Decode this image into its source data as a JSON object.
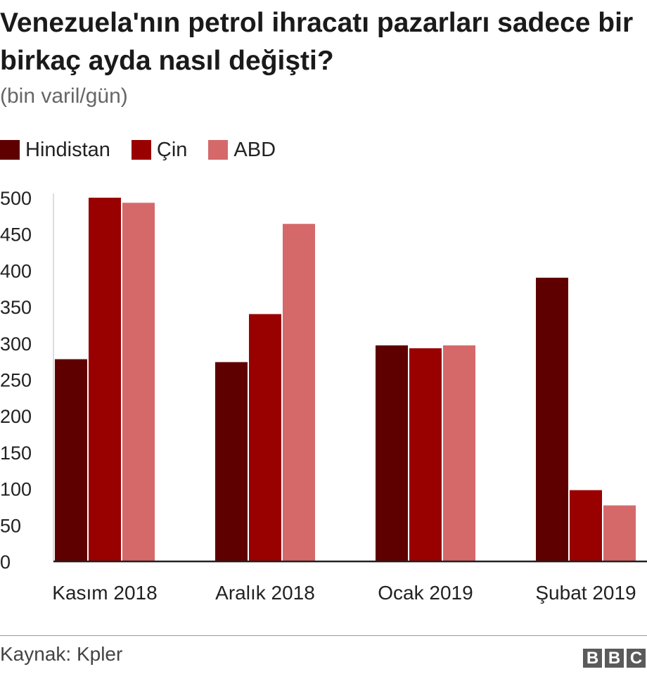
{
  "title": "Venezuela'nın petrol ihracatı pazarları sadece bir birkaç ayda nasıl değişti?",
  "subtitle": "(bin varil/gün)",
  "source": "Kaynak: Kpler",
  "logo": [
    "B",
    "B",
    "C"
  ],
  "chart_data": {
    "type": "bar",
    "categories": [
      "Kasım 2018",
      "Aralık 2018",
      "Ocak 2019",
      "Şubat 2019"
    ],
    "series": [
      {
        "name": "Hindistan",
        "color": "#5f0000",
        "values": [
          278,
          274,
          297,
          390
        ]
      },
      {
        "name": "Çin",
        "color": "#990000",
        "values": [
          500,
          340,
          293,
          98
        ]
      },
      {
        "name": "ABD",
        "color": "#d5696a",
        "values": [
          493,
          464,
          297,
          77
        ]
      }
    ],
    "ylim": [
      0,
      500
    ],
    "yticks": [
      0,
      50,
      100,
      150,
      200,
      250,
      300,
      350,
      400,
      450,
      500
    ],
    "grid": false,
    "legend": "top-left"
  }
}
